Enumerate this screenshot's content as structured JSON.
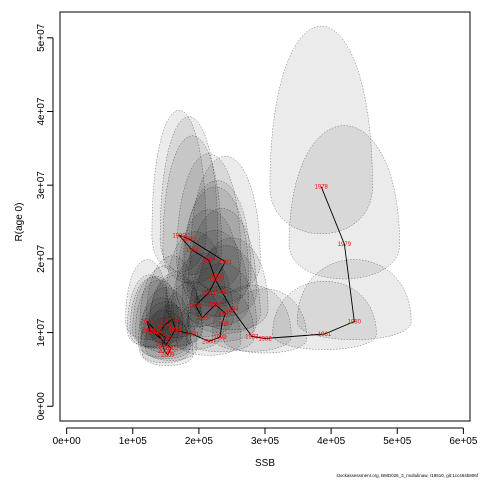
{
  "chart_data": {
    "type": "scatter",
    "title": "",
    "xlabel": "SSB",
    "ylabel": "R(age 0)",
    "xlim": [
      -10000,
      610000
    ],
    "ylim": [
      -2000000,
      53500000
    ],
    "xticks": [
      0,
      100000,
      200000,
      300000,
      400000,
      500000,
      600000
    ],
    "xtick_labels": [
      "0e+00",
      "1e+05",
      "2e+05",
      "3e+05",
      "4e+05",
      "5e+05",
      "6e+05"
    ],
    "yticks": [
      0,
      10000000,
      20000000,
      30000000,
      40000000,
      50000000
    ],
    "ytick_labels": [
      "0e+00",
      "1e+07",
      "2e+07",
      "3e+07",
      "4e+07",
      "5e+07"
    ],
    "grid": false,
    "points": [
      {
        "year": "1978",
        "ssb": 385000,
        "rec": 29800000
      },
      {
        "year": "1979",
        "ssb": 420000,
        "rec": 22000000
      },
      {
        "year": "1980",
        "ssb": 435000,
        "rec": 11500000
      },
      {
        "year": "1981",
        "ssb": 390000,
        "rec": 9800000
      },
      {
        "year": "1982",
        "ssb": 300000,
        "rec": 9200000
      },
      {
        "year": "1983",
        "ssb": 280000,
        "rec": 9500000
      },
      {
        "year": "1984",
        "ssb": 250000,
        "rec": 13200000
      },
      {
        "year": "1985",
        "ssb": 235000,
        "rec": 15500000
      },
      {
        "year": "1986",
        "ssb": 225000,
        "rec": 17200000
      },
      {
        "year": "1987",
        "ssb": 215000,
        "rec": 19800000
      },
      {
        "year": "1988",
        "ssb": 190000,
        "rec": 21200000
      },
      {
        "year": "1989",
        "ssb": 170000,
        "rec": 23200000
      },
      {
        "year": "1990",
        "ssb": 185000,
        "rec": 22700000
      },
      {
        "year": "1991",
        "ssb": 240000,
        "rec": 19600000
      },
      {
        "year": "1992",
        "ssb": 228000,
        "rec": 17700000
      },
      {
        "year": "1993",
        "ssb": 215000,
        "rec": 15400000
      },
      {
        "year": "1994",
        "ssb": 195000,
        "rec": 13700000
      },
      {
        "year": "1995",
        "ssb": 205000,
        "rec": 12000000
      },
      {
        "year": "1996",
        "ssb": 225000,
        "rec": 13800000
      },
      {
        "year": "1997",
        "ssb": 240000,
        "rec": 12600000
      },
      {
        "year": "1998",
        "ssb": 235000,
        "rec": 11200000
      },
      {
        "year": "1999",
        "ssb": 232000,
        "rec": 9400000
      },
      {
        "year": "2000",
        "ssb": 215000,
        "rec": 8800000
      },
      {
        "year": "2001",
        "ssb": 190000,
        "rec": 9800000
      },
      {
        "year": "2002",
        "ssb": 165000,
        "rec": 10300000
      },
      {
        "year": "2003",
        "ssb": 160000,
        "rec": 11800000
      },
      {
        "year": "2004",
        "ssb": 148000,
        "rec": 11000000
      },
      {
        "year": "2005",
        "ssb": 140000,
        "rec": 9900000
      },
      {
        "year": "2006",
        "ssb": 150000,
        "rec": 9300000
      },
      {
        "year": "2007",
        "ssb": 145000,
        "rec": 8500000
      },
      {
        "year": "2008",
        "ssb": 148000,
        "rec": 7500000
      },
      {
        "year": "2009",
        "ssb": 153000,
        "rec": 7000000
      },
      {
        "year": "2010",
        "ssb": 158000,
        "rec": 7900000
      },
      {
        "year": "2011",
        "ssb": 130000,
        "rec": 10100000
      },
      {
        "year": "2012",
        "ssb": 125000,
        "rec": 10300000
      },
      {
        "year": "2013",
        "ssb": 122000,
        "rec": 11500000
      },
      {
        "year": "2014",
        "ssb": 135000,
        "rec": 10200000
      },
      {
        "year": "2015",
        "ssb": 150000,
        "rec": 8200000
      },
      {
        "year": "2016",
        "ssb": 165000,
        "rec": 10500000
      }
    ],
    "confidence_ellipses": true
  },
  "footer": "stockassessment.org, BMD026_3_multulinaw, r19510, git:1cc464b806f"
}
